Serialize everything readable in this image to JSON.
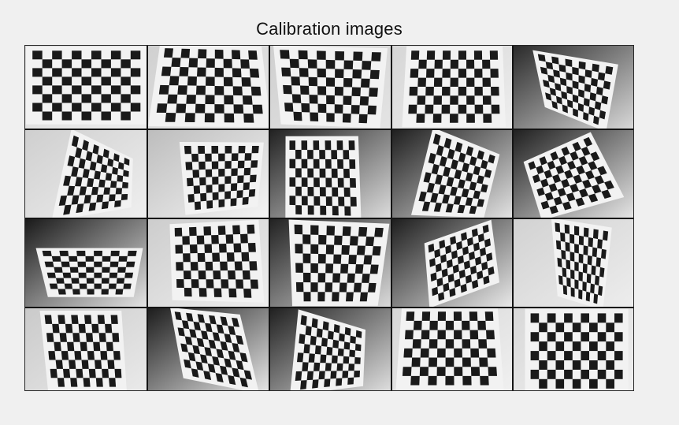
{
  "figure": {
    "title": "Calibration images"
  },
  "montage": {
    "rows": 4,
    "cols": 5,
    "images": [
      {
        "label": "calibration-image-1",
        "board_squares": [
          11,
          8
        ],
        "style": "frontal"
      },
      {
        "label": "calibration-image-2",
        "board_squares": [
          11,
          8
        ],
        "style": "frontal"
      },
      {
        "label": "calibration-image-3",
        "board_squares": [
          11,
          8
        ],
        "style": "frontal"
      },
      {
        "label": "calibration-image-4",
        "board_squares": [
          11,
          8
        ],
        "style": "frontal"
      },
      {
        "label": "calibration-image-5",
        "board_squares": [
          11,
          8
        ],
        "style": "tilted-right"
      },
      {
        "label": "calibration-image-6",
        "board_squares": [
          11,
          8
        ],
        "style": "tilted-right"
      },
      {
        "label": "calibration-image-7",
        "board_squares": [
          11,
          8
        ],
        "style": "tilted-left"
      },
      {
        "label": "calibration-image-8",
        "board_squares": [
          11,
          8
        ],
        "style": "frontal"
      },
      {
        "label": "calibration-image-9",
        "board_squares": [
          11,
          8
        ],
        "style": "tilted-right"
      },
      {
        "label": "calibration-image-10",
        "board_squares": [
          11,
          8
        ],
        "style": "tilted-left"
      },
      {
        "label": "calibration-image-11",
        "board_squares": [
          11,
          8
        ],
        "style": "low"
      },
      {
        "label": "calibration-image-12",
        "board_squares": [
          11,
          8
        ],
        "style": "frontal"
      },
      {
        "label": "calibration-image-13",
        "board_squares": [
          11,
          8
        ],
        "style": "frontal"
      },
      {
        "label": "calibration-image-14",
        "board_squares": [
          11,
          8
        ],
        "style": "tilted-left"
      },
      {
        "label": "calibration-image-15",
        "board_squares": [
          11,
          8
        ],
        "style": "tilted-right"
      },
      {
        "label": "calibration-image-16",
        "board_squares": [
          11,
          8
        ],
        "style": "frontal"
      },
      {
        "label": "calibration-image-17",
        "board_squares": [
          11,
          8
        ],
        "style": "tilted-right"
      },
      {
        "label": "calibration-image-18",
        "board_squares": [
          11,
          8
        ],
        "style": "tilted-left"
      },
      {
        "label": "calibration-image-19",
        "board_squares": [
          11,
          8
        ],
        "style": "frontal"
      },
      {
        "label": "calibration-image-20",
        "board_squares": [
          11,
          8
        ],
        "style": "frontal"
      }
    ]
  }
}
